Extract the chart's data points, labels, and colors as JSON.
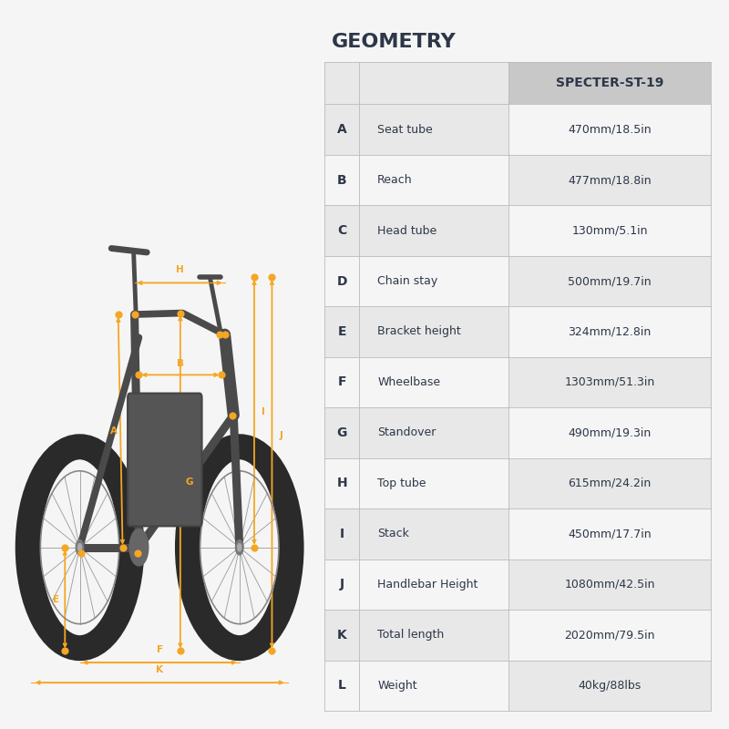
{
  "title": "GEOMETRY",
  "title_fontsize": 16,
  "title_color": "#2d3748",
  "background_color": "#f5f5f5",
  "header_col": "SPECTER-ST-19",
  "row_bg_odd": "#e8e8e8",
  "row_bg_even": "#f5f5f5",
  "header_bg": "#cccccc",
  "table_border": "#bbbbbb",
  "table_text_color": "#2d3748",
  "rows": [
    {
      "letter": "A",
      "label": "Seat tube",
      "value": "470mm/18.5in"
    },
    {
      "letter": "B",
      "label": "Reach",
      "value": "477mm/18.8in"
    },
    {
      "letter": "C",
      "label": "Head tube",
      "value": "130mm/5.1in"
    },
    {
      "letter": "D",
      "label": "Chain stay",
      "value": "500mm/19.7in"
    },
    {
      "letter": "E",
      "label": "Bracket height",
      "value": "324mm/12.8in"
    },
    {
      "letter": "F",
      "label": "Wheelbase",
      "value": "1303mm/51.3in"
    },
    {
      "letter": "G",
      "label": "Standover",
      "value": "490mm/19.3in"
    },
    {
      "letter": "H",
      "label": "Top tube",
      "value": "615mm/24.2in"
    },
    {
      "letter": "I",
      "label": "Stack",
      "value": "450mm/17.7in"
    },
    {
      "letter": "J",
      "label": "Handlebar Height",
      "value": "1080mm/42.5in"
    },
    {
      "letter": "K",
      "label": "Total length",
      "value": "2020mm/79.5in"
    },
    {
      "letter": "L",
      "label": "Weight",
      "value": "40kg/88lbs"
    }
  ],
  "orange": "#F5A623",
  "dark": "#4a4a4a",
  "wheel_color": "#3d3d3d",
  "tire_color": "#2a2a2a"
}
